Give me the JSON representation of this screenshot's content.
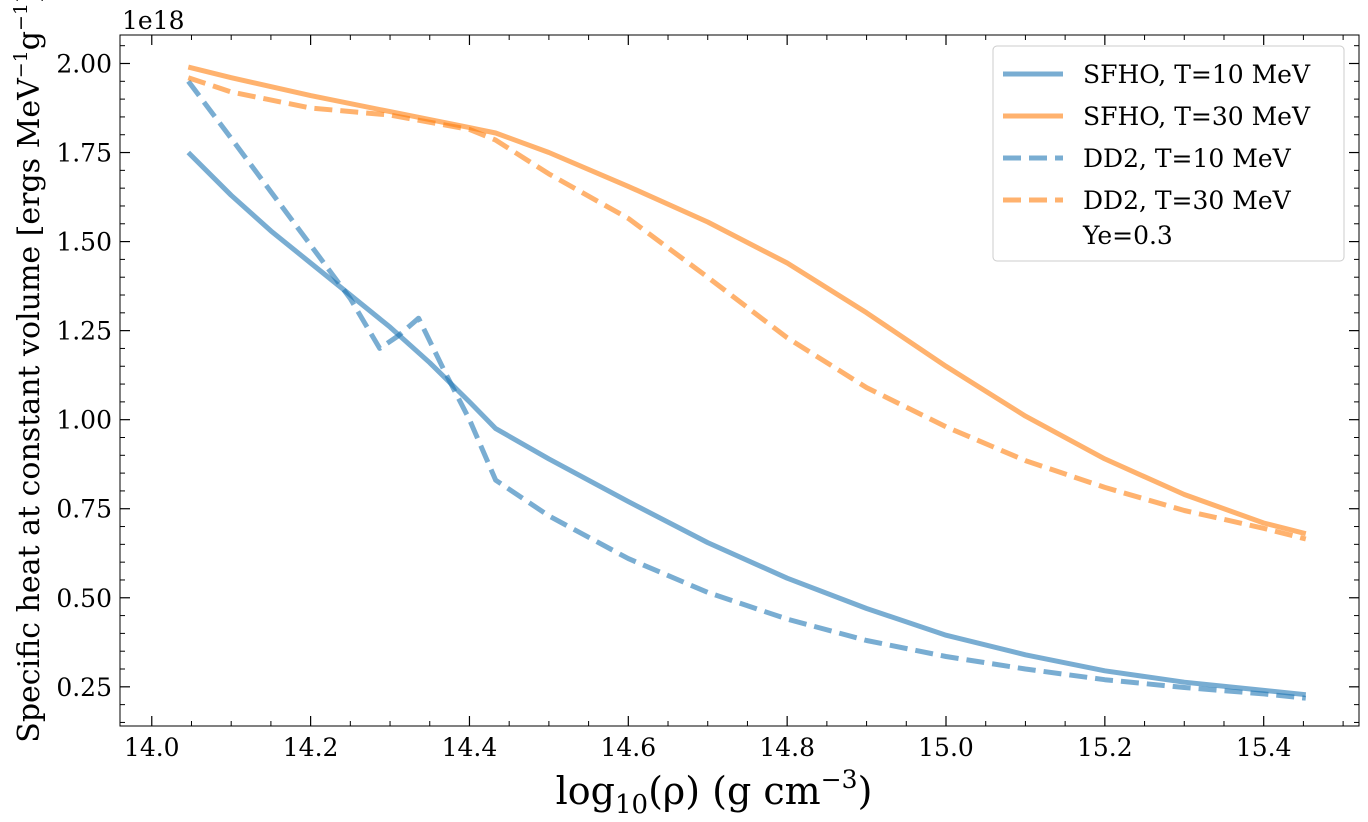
{
  "chart_data": {
    "type": "line",
    "title": "",
    "xlabel_main": "log",
    "xlabel_sub": "10",
    "xlabel_paren": "(ρ)",
    "xlabel_units": "(g cm",
    "xlabel_units_exp": "−3",
    "xlabel_close": ")",
    "ylabel_main": "Specific heat at constant volume [ergs MeV",
    "ylabel_exp1": "−1",
    "ylabel_mid": "g",
    "ylabel_exp2": "−1",
    "ylabel_close": "]",
    "y_offset_text": "1e18",
    "xlim": [
      13.96,
      15.52
    ],
    "ylim": [
      0.14,
      2.08
    ],
    "xticks": [
      14.0,
      14.2,
      14.4,
      14.6,
      14.8,
      15.0,
      15.2,
      15.4
    ],
    "xtick_labels": [
      "14.0",
      "14.2",
      "14.4",
      "14.6",
      "14.8",
      "15.0",
      "15.2",
      "15.4"
    ],
    "yticks": [
      0.25,
      0.5,
      0.75,
      1.0,
      1.25,
      1.5,
      1.75,
      2.0
    ],
    "ytick_labels": [
      "0.25",
      "0.50",
      "0.75",
      "1.00",
      "1.25",
      "1.50",
      "1.75",
      "2.00"
    ],
    "legend_position": "top-right",
    "legend_note": "Ye=0.3",
    "colors": {
      "blue": "#1f77b4",
      "orange": "#ff7f0e"
    },
    "series": [
      {
        "name": "SFHO, T=10 MeV",
        "color": "#1f77b4",
        "dash": "solid",
        "x": [
          14.046,
          14.1,
          14.15,
          14.2,
          14.25,
          14.3,
          14.35,
          14.4,
          14.433,
          14.5,
          14.6,
          14.7,
          14.8,
          14.9,
          15.0,
          15.1,
          15.2,
          15.3,
          15.4,
          15.453
        ],
        "y": [
          1.75,
          1.63,
          1.53,
          1.44,
          1.35,
          1.26,
          1.16,
          1.05,
          0.975,
          0.89,
          0.77,
          0.655,
          0.555,
          0.47,
          0.395,
          0.34,
          0.295,
          0.263,
          0.24,
          0.228
        ]
      },
      {
        "name": "SFHO, T=30 MeV",
        "color": "#ff7f0e",
        "dash": "solid",
        "x": [
          14.046,
          14.1,
          14.2,
          14.3,
          14.4,
          14.433,
          14.5,
          14.6,
          14.7,
          14.8,
          14.9,
          15.0,
          15.1,
          15.2,
          15.3,
          15.4,
          15.453
        ],
        "y": [
          1.99,
          1.96,
          1.91,
          1.865,
          1.82,
          1.805,
          1.75,
          1.655,
          1.555,
          1.44,
          1.3,
          1.15,
          1.01,
          0.89,
          0.79,
          0.71,
          0.68
        ]
      },
      {
        "name": "DD2, T=10 MeV",
        "color": "#1f77b4",
        "dash": "dashed",
        "x": [
          14.046,
          14.1,
          14.15,
          14.2,
          14.25,
          14.287,
          14.31,
          14.336,
          14.37,
          14.4,
          14.433,
          14.5,
          14.6,
          14.7,
          14.8,
          14.9,
          15.0,
          15.1,
          15.2,
          15.3,
          15.4,
          15.453
        ],
        "y": [
          1.95,
          1.79,
          1.64,
          1.49,
          1.34,
          1.2,
          1.235,
          1.285,
          1.13,
          1.0,
          0.83,
          0.73,
          0.61,
          0.515,
          0.44,
          0.38,
          0.335,
          0.3,
          0.27,
          0.248,
          0.23,
          0.218
        ]
      },
      {
        "name": "DD2, T=30 MeV",
        "color": "#ff7f0e",
        "dash": "dashed",
        "x": [
          14.046,
          14.1,
          14.2,
          14.3,
          14.4,
          14.433,
          14.5,
          14.6,
          14.7,
          14.8,
          14.9,
          15.0,
          15.1,
          15.2,
          15.3,
          15.4,
          15.453
        ],
        "y": [
          1.96,
          1.92,
          1.875,
          1.855,
          1.815,
          1.785,
          1.69,
          1.565,
          1.4,
          1.23,
          1.09,
          0.98,
          0.885,
          0.81,
          0.745,
          0.695,
          0.665
        ]
      }
    ]
  }
}
